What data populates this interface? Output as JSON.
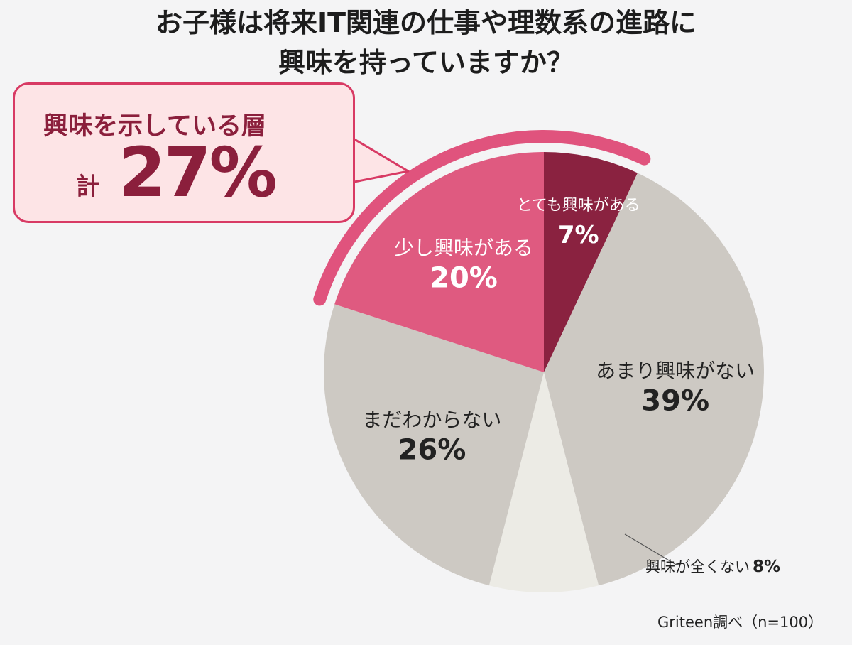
{
  "title_lines": [
    "お子様は将来IT関連の仕事や理数系の進路に",
    "興味を持っていますか？"
  ],
  "callout": {
    "label": "興味を示している層",
    "prefix": "計",
    "value": "27%"
  },
  "source": "Griteen調べ（n=100）",
  "chart_data": {
    "type": "pie",
    "categories": [
      "とても興味がある",
      "あまり興味がない",
      "興味が全くない",
      "まだわからない",
      "少し興味がある"
    ],
    "values": [
      7,
      39,
      8,
      26,
      20
    ],
    "colors": [
      "#8a2240",
      "#cdc9c3",
      "#ecebe5",
      "#cdc9c3",
      "#df5a80"
    ],
    "highlight_color": "#e0537d",
    "title": "お子様は将来IT関連の仕事や理数系の進路に興味を持っていますか？"
  }
}
